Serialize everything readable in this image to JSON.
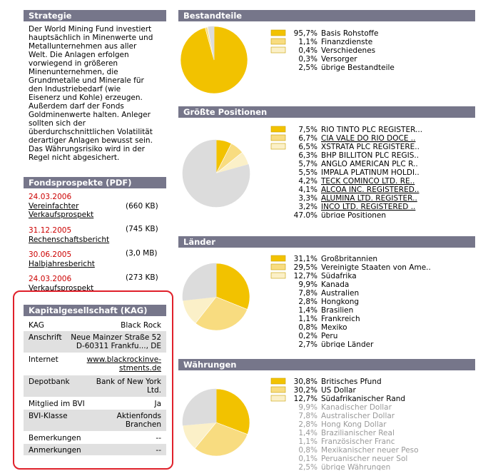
{
  "strategie": {
    "title": "Strategie",
    "lines": [
      "Der World Mining Fund investiert",
      "hauptsächlich in Minenwerte und",
      "Metallunternehmen aus aller",
      "Welt. Die Anlagen erfolgen",
      "vorwiegend in größeren",
      "Minenunternehmen, die",
      "Grundmetalle und Minerale für",
      "den Industriebedarf (wie",
      "Eisenerz und Kohle) erzeugen.",
      "Außerdem darf der Fonds",
      "Goldminenwerte halten. Anleger",
      "sollten sich der",
      "überdurchschnittlichen Volatilität",
      "derartiger Anlagen bewusst sein.",
      "Das Währungsrisiko wird in der",
      "Regel nicht abgesichert."
    ]
  },
  "fondsprospekte": {
    "title": "Fondsprospekte (PDF)",
    "items": [
      {
        "date": "24.03.2006",
        "name": [
          "Vereinfachter",
          "Verkaufsprospekt"
        ],
        "size": "(660 KB)"
      },
      {
        "date": "31.12.2005",
        "name": [
          "Rechenschaftsbericht"
        ],
        "size": "(745 KB)"
      },
      {
        "date": "30.06.2005",
        "name": [
          "Halbjahresbericht"
        ],
        "size": "(3,0 MB)"
      },
      {
        "date": "24.03.2006",
        "name": [
          "Verkaufsprospekt"
        ],
        "size": "(273 KB)"
      }
    ]
  },
  "kag": {
    "title": "Kapitalgesellschaft (KAG)",
    "rows": [
      {
        "label": "KAG",
        "value": [
          "Black Rock"
        ]
      },
      {
        "label": "Anschrift",
        "value": [
          "Neue Mainzer Straße 52",
          "D-60311 Frankfu..., DE"
        ]
      },
      {
        "label": "Internet",
        "value": [
          "www.blackrockinve-",
          "stments.de"
        ]
      },
      {
        "label": "Depotbank",
        "value": [
          "Bank of New York",
          "Ltd."
        ]
      },
      {
        "label": "Mitglied im BVI",
        "value": [
          "Ja"
        ]
      },
      {
        "label": "BVI-Klasse",
        "value": [
          "Aktienfonds",
          "Branchen"
        ]
      },
      {
        "label": "Bemerkungen",
        "value": [
          "--"
        ]
      },
      {
        "label": "Anmerkungen",
        "value": [
          "--"
        ]
      }
    ]
  },
  "chart_data": [
    {
      "type": "pie",
      "title": "Bestandteile",
      "categories": [
        "Basis Rohstoffe",
        "Finanzdienste",
        "Verschiedenes",
        "Versorger",
        "übrige Bestandteile"
      ],
      "values": [
        95.7,
        1.1,
        0.4,
        0.3,
        2.5
      ],
      "value_labels": [
        "95,7%",
        "1,1%",
        "0,4%",
        "0,3%",
        "2,5%"
      ],
      "colors": [
        "#f2c200",
        "#f8dc80",
        "#fbf0c8",
        "#dcdcdc",
        "#dcdcdc"
      ]
    },
    {
      "type": "pie",
      "title": "Größte Positionen",
      "categories": [
        "RIO TINTO PLC REGISTER...",
        "CIA VALE DO RIO DOCE ..",
        "XSTRATA PLC REGISTERE..",
        "BHP BILLITON PLC REGIS..",
        "ANGLO AMERICAN PLC R..",
        "IMPALA PLATINUM HOLDI..",
        "TECK COMINCO LTD. RE..",
        "ALCOA INC. REGISTERED..",
        "ALUMINA LTD. REGISTER..",
        "INCO LTD. REGISTERED ..",
        "übrige Positionen"
      ],
      "values": [
        7.5,
        6.7,
        6.5,
        6.3,
        5.7,
        5.5,
        4.2,
        4.1,
        3.3,
        3.2,
        47.0
      ],
      "value_labels": [
        "7,5%",
        "6,7%",
        "6,5%",
        "6,3%",
        "5,7%",
        "5,5%",
        "4,2%",
        "4,1%",
        "3,3%",
        "3,2%",
        "47,0%"
      ],
      "colors": [
        "#f2c200",
        "#f8dc80",
        "#fbf0c8",
        "#dcdcdc",
        "#dcdcdc",
        "#dcdcdc",
        "#dcdcdc",
        "#dcdcdc",
        "#dcdcdc",
        "#dcdcdc",
        "#dcdcdc"
      ]
    },
    {
      "type": "pie",
      "title": "Länder",
      "categories": [
        "Großbritannien",
        "Vereinigte Staaten von Ame..",
        "Südafrika",
        "Kanada",
        "Australien",
        "Hongkong",
        "Brasilien",
        "Frankreich",
        "Mexiko",
        "Peru",
        "übrige Länder"
      ],
      "values": [
        31.1,
        29.5,
        12.7,
        9.9,
        7.8,
        2.8,
        1.4,
        1.1,
        0.8,
        0.2,
        2.7
      ],
      "value_labels": [
        "31,1%",
        "29,5%",
        "12,7%",
        "9,9%",
        "7,8%",
        "2,8%",
        "1,4%",
        "1,1%",
        "0,8%",
        "0,2%",
        "2,7%"
      ],
      "colors": [
        "#f2c200",
        "#f8dc80",
        "#fbf0c8",
        "#dcdcdc",
        "#dcdcdc",
        "#dcdcdc",
        "#dcdcdc",
        "#dcdcdc",
        "#dcdcdc",
        "#dcdcdc",
        "#dcdcdc"
      ]
    },
    {
      "type": "pie",
      "title": "Währungen",
      "categories": [
        "Britisches Pfund",
        "US Dollar",
        "Südafrikanischer Rand",
        "Kanadischer Dollar",
        "Australischer Dollar",
        "Hong Kong Dollar",
        "Brazilianischer Real",
        "Französischer Franc",
        "Mexikanischer neuer Peso",
        "Peruanischer neuer Sol",
        "übrige Währungen"
      ],
      "values": [
        30.8,
        30.2,
        12.7,
        9.9,
        7.8,
        2.8,
        1.4,
        1.1,
        0.8,
        0.1,
        2.5
      ],
      "value_labels": [
        "30,8%",
        "30,2%",
        "12,7%",
        "9,9%",
        "7,8%",
        "2,8%",
        "1,4%",
        "1,1%",
        "0,8%",
        "0,1%",
        "2,5%"
      ],
      "colors": [
        "#f2c200",
        "#f8dc80",
        "#fbf0c8",
        "#dcdcdc",
        "#dcdcdc",
        "#dcdcdc",
        "#dcdcdc",
        "#dcdcdc",
        "#dcdcdc",
        "#dcdcdc",
        "#dcdcdc"
      ]
    }
  ]
}
